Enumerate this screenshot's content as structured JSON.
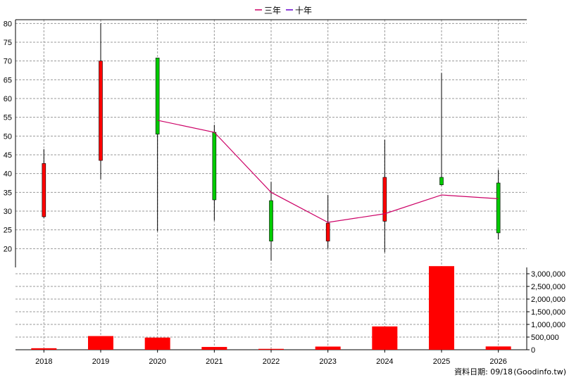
{
  "chart_data": {
    "type": "candlestick",
    "categories": [
      "2018",
      "2019",
      "2020",
      "2021",
      "2022",
      "2023",
      "2024",
      "2025",
      "2026"
    ],
    "ohlc": [
      {
        "year": "2018",
        "open": 28.5,
        "high": 46.5,
        "low": 28.2,
        "close": 42.7
      },
      {
        "year": "2019",
        "open": 43.5,
        "high": 80.0,
        "low": 38.5,
        "close": 70.0
      },
      {
        "year": "2020",
        "open": 70.8,
        "high": 70.8,
        "low": 24.6,
        "close": 50.5
      },
      {
        "year": "2021",
        "open": 51.0,
        "high": 53.0,
        "low": 27.5,
        "close": 33.0
      },
      {
        "year": "2022",
        "open": 32.8,
        "high": 37.8,
        "low": 16.8,
        "close": 22.0
      },
      {
        "year": "2023",
        "open": 22.0,
        "high": 34.3,
        "low": 20.0,
        "close": 26.8
      },
      {
        "year": "2024",
        "open": 27.3,
        "high": 49.0,
        "low": 19.0,
        "close": 39.0
      },
      {
        "year": "2025",
        "open": 39.0,
        "high": 66.8,
        "low": 36.8,
        "close": 37.0
      },
      {
        "year": "2026",
        "open": 37.5,
        "high": 41.0,
        "low": 22.5,
        "close": 24.2
      }
    ],
    "lines": [
      {
        "name": "三年",
        "color": "#cc0066",
        "values": [
          null,
          null,
          54.2,
          51.0,
          35.0,
          27.0,
          29.3,
          34.3,
          33.3
        ]
      },
      {
        "name": "十年",
        "color": "#6600cc",
        "values": [
          null,
          null,
          null,
          null,
          null,
          null,
          null,
          null,
          null
        ]
      }
    ],
    "volume": [
      60000,
      540000,
      480000,
      110000,
      35000,
      125000,
      920000,
      3300000,
      130000
    ],
    "y_price": {
      "min": 15,
      "max": 81,
      "ticks": [
        20,
        25,
        30,
        35,
        40,
        45,
        50,
        55,
        60,
        65,
        70,
        75,
        80
      ]
    },
    "y_volume": {
      "min": 0,
      "max": 3250000,
      "ticks": [
        0,
        500000,
        1000000,
        1500000,
        2000000,
        2500000,
        3000000
      ],
      "tick_labels": [
        "0",
        "500,000",
        "1,000,000",
        "1,500,000",
        "2,000,000",
        "2,500,000",
        "3,000,000"
      ]
    },
    "colors": {
      "up": "#ff0000",
      "down": "#00cc00",
      "volume": "#ff0000",
      "grid": "#999999"
    }
  },
  "legend": {
    "items": [
      {
        "label": "三年",
        "color": "#cc0066"
      },
      {
        "label": "十年",
        "color": "#6600cc"
      }
    ]
  },
  "footer": {
    "date_label": "資料日期: 09/18",
    "source": "(Goodinfo.tw)"
  }
}
